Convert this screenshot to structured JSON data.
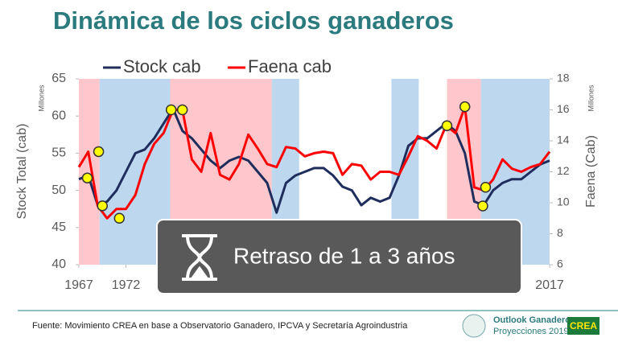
{
  "header": {
    "title": "Dinámica de los ciclos ganaderos"
  },
  "chart_data": {
    "type": "line",
    "x": [
      1967,
      1968,
      1969,
      1970,
      1971,
      1972,
      1973,
      1974,
      1975,
      1976,
      1977,
      1978,
      1979,
      1980,
      1981,
      1982,
      1983,
      1984,
      1985,
      1986,
      1987,
      1988,
      1989,
      1990,
      1991,
      1992,
      1993,
      1994,
      1995,
      1996,
      1997,
      1998,
      1999,
      2000,
      2001,
      2002,
      2003,
      2004,
      2005,
      2006,
      2007,
      2008,
      2009,
      2010,
      2011,
      2012,
      2013,
      2014,
      2015,
      2016,
      2017
    ],
    "series": [
      {
        "name": "Stock cab",
        "color": "#1f2d5c",
        "values": [
          51.5,
          52,
          48,
          48.5,
          50,
          52.5,
          55,
          55.5,
          57,
          59,
          61,
          58,
          57,
          55.5,
          54,
          53,
          54,
          54.5,
          54,
          52.5,
          51,
          47,
          51,
          52,
          52.5,
          53,
          53,
          52,
          50.5,
          50,
          48,
          49,
          48.5,
          49,
          52,
          56,
          57,
          57,
          58,
          59,
          58,
          55,
          48.5,
          48,
          50,
          51,
          51.5,
          51.5,
          52.5,
          53.5,
          54
        ]
      },
      {
        "name": "Faena cab",
        "color": "#ff0000",
        "axis": "y2",
        "values": [
          12.3,
          13.3,
          9.8,
          9.0,
          9.6,
          9.6,
          10.5,
          12.5,
          13.8,
          14.5,
          16.0,
          16.0,
          12.8,
          12.0,
          14.5,
          11.8,
          11.5,
          12.5,
          14.4,
          13.5,
          12.5,
          12.3,
          13.6,
          13.5,
          13.0,
          13.2,
          13.3,
          13.2,
          11.8,
          12.5,
          12.4,
          11.5,
          12.0,
          12.0,
          11.8,
          13.0,
          14.3,
          14.0,
          13.5,
          15.0,
          14.5,
          16.2,
          11.0,
          10.8,
          11.5,
          12.8,
          12.2,
          12.0,
          12.3,
          12.5,
          13.3
        ]
      }
    ],
    "xlim": [
      1967,
      2017
    ],
    "xticks": [
      1967,
      1972,
      2017
    ],
    "ylim": [
      40,
      65
    ],
    "yticks": [
      40,
      45,
      50,
      55,
      60,
      65
    ],
    "y2lim": [
      6,
      18
    ],
    "y2ticks": [
      6,
      8,
      10,
      12,
      14,
      16,
      18
    ],
    "y_label": "Stock Total (cab)",
    "y_unit": "Millones",
    "y2_label": "Faena (Cab)",
    "y2_unit": "Millones",
    "bands": [
      {
        "from": 1967,
        "to": 1969.2,
        "color": "#ffc7cc"
      },
      {
        "from": 1969.2,
        "to": 1976.7,
        "color": "#bdd7ee"
      },
      {
        "from": 1976.7,
        "to": 1987.5,
        "color": "#ffc7cc"
      },
      {
        "from": 1987.5,
        "to": 1990.4,
        "color": "#bdd7ee"
      },
      {
        "from": 2000.2,
        "to": 2003.1,
        "color": "#bdd7ee"
      },
      {
        "from": 2006.1,
        "to": 2009.7,
        "color": "#ffc7cc"
      },
      {
        "from": 2009.7,
        "to": 2017,
        "color": "#bdd7ee"
      }
    ],
    "highlights": {
      "color": "#ffff00",
      "points": [
        {
          "x": 1967.9,
          "y": 11.6,
          "axis": "y2"
        },
        {
          "x": 1969.1,
          "y": 13.3,
          "axis": "y2"
        },
        {
          "x": 1969.5,
          "y": 9.8,
          "axis": "y2"
        },
        {
          "x": 1971.3,
          "y": 9.0,
          "axis": "y2"
        },
        {
          "x": 1976.8,
          "y": 16.0,
          "axis": "y2"
        },
        {
          "x": 1978.0,
          "y": 16.0,
          "axis": "y2"
        },
        {
          "x": 2006.1,
          "y": 58.7,
          "axis": "y"
        },
        {
          "x": 2008.0,
          "y": 16.2,
          "axis": "y2"
        },
        {
          "x": 2009.9,
          "y": 47.9,
          "axis": "y"
        },
        {
          "x": 2010.2,
          "y": 11.0,
          "axis": "y2"
        }
      ]
    }
  },
  "annotation": {
    "text": "Retraso de 1 a 3 años"
  },
  "footer": {
    "source": "Fuente: Movimiento CREA en base a Observatorio Ganadero, IPCVA y Secretaría Agroindustria",
    "logo_title": "Outlook Ganadero",
    "logo_subtitle": "Proyecciones 2019",
    "brand": "CREA"
  }
}
